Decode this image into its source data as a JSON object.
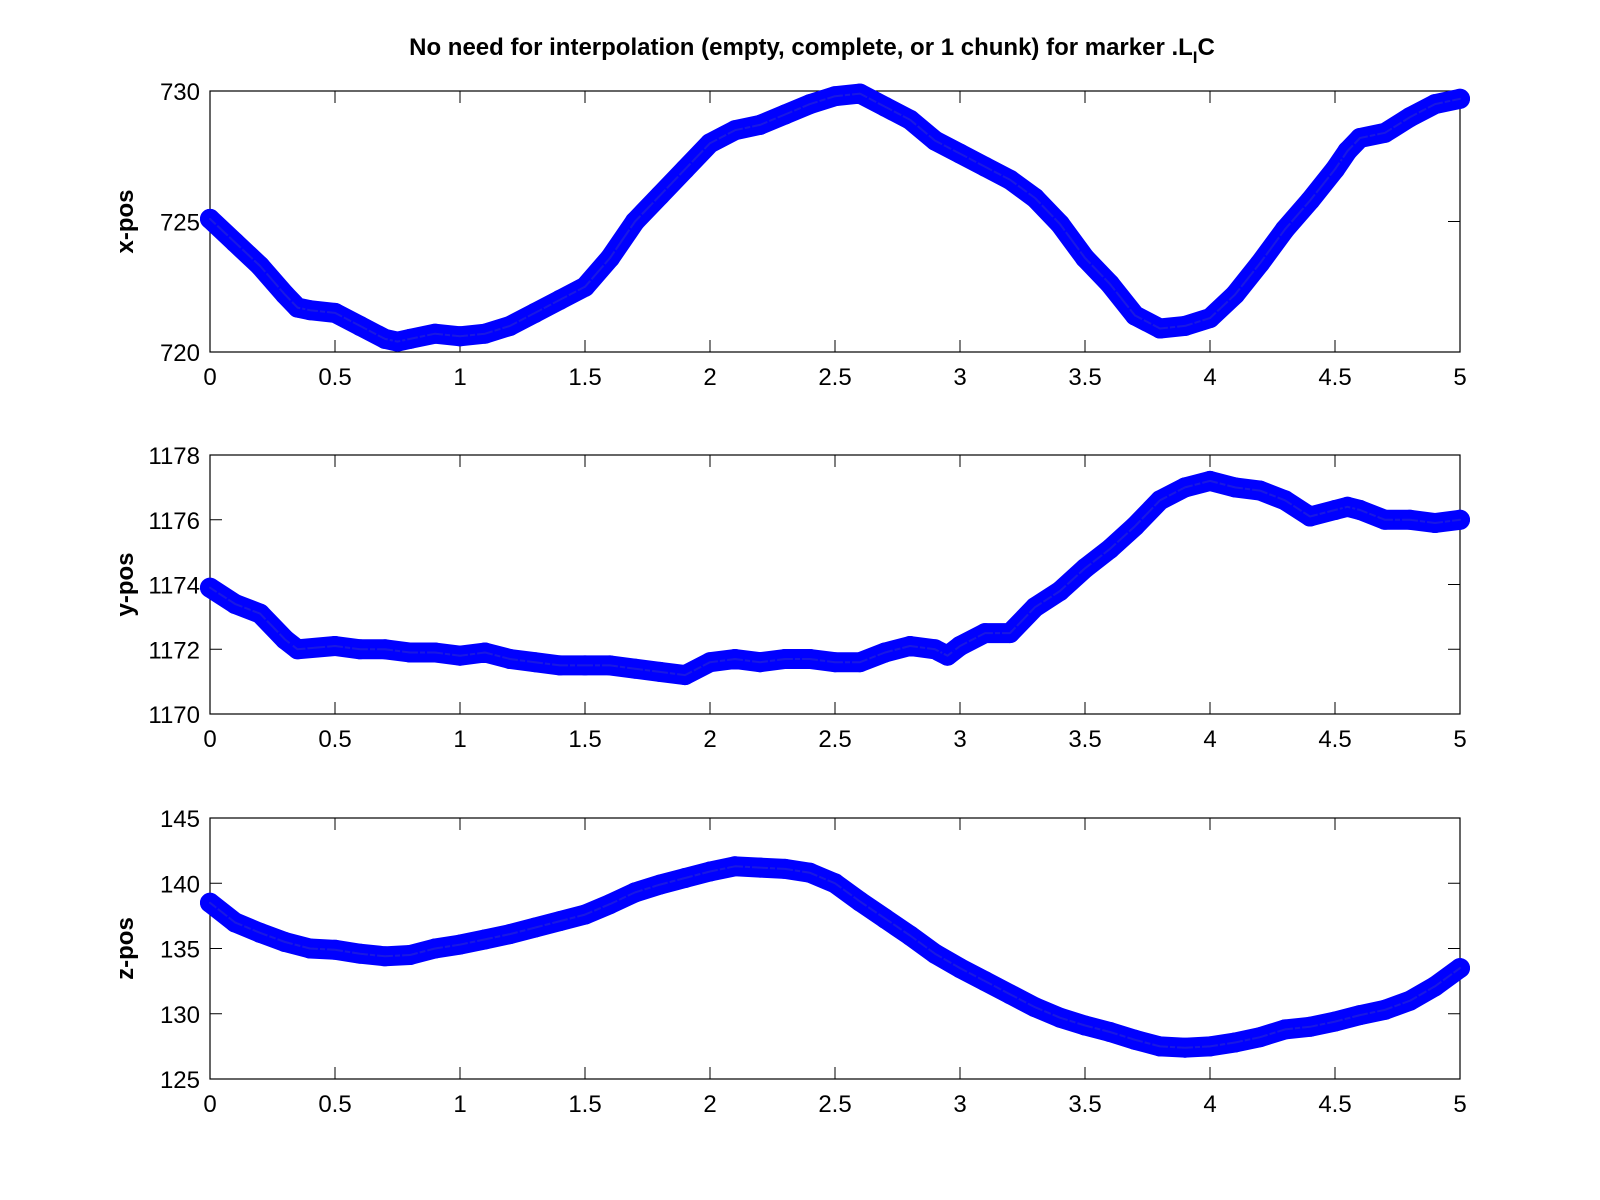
{
  "figure": {
    "background": "#ffffff",
    "series_color": "#0000ff"
  },
  "chart_data": [
    {
      "type": "line",
      "marker": "circle",
      "title": "No need for interpolation (empty, complete, or 1 chunk) for marker .L",
      "title_subscript": "I",
      "title_suffix": "C",
      "xlabel": "",
      "ylabel": "x-pos",
      "xlim": [
        0,
        5
      ],
      "ylim": [
        720,
        730
      ],
      "xticks": [
        "0",
        "0.5",
        "1",
        "1.5",
        "2",
        "2.5",
        "3",
        "3.5",
        "4",
        "4.5",
        "5"
      ],
      "yticks": [
        "720",
        "725",
        "730"
      ],
      "grid": false,
      "x": [
        0,
        0.1,
        0.2,
        0.3,
        0.35,
        0.4,
        0.5,
        0.6,
        0.7,
        0.75,
        0.8,
        0.9,
        1.0,
        1.1,
        1.2,
        1.3,
        1.4,
        1.5,
        1.6,
        1.7,
        1.8,
        1.9,
        2.0,
        2.1,
        2.2,
        2.3,
        2.4,
        2.5,
        2.6,
        2.7,
        2.8,
        2.9,
        3.0,
        3.1,
        3.2,
        3.3,
        3.4,
        3.5,
        3.6,
        3.7,
        3.8,
        3.9,
        4.0,
        4.1,
        4.2,
        4.3,
        4.4,
        4.5,
        4.55,
        4.6,
        4.7,
        4.8,
        4.9,
        5.0
      ],
      "values": [
        725.1,
        724.2,
        723.3,
        722.2,
        721.7,
        721.6,
        721.5,
        721.0,
        720.5,
        720.4,
        720.5,
        720.7,
        720.6,
        720.7,
        721.0,
        721.5,
        722.0,
        722.5,
        723.6,
        725.0,
        726.0,
        727.0,
        728.0,
        728.5,
        728.7,
        729.1,
        729.5,
        729.8,
        729.9,
        729.4,
        728.9,
        728.1,
        727.6,
        727.1,
        726.6,
        725.9,
        724.9,
        723.6,
        722.6,
        721.4,
        720.9,
        721.0,
        721.3,
        722.2,
        723.4,
        724.7,
        725.8,
        727.0,
        727.7,
        728.2,
        728.4,
        729.0,
        729.5,
        729.7
      ]
    },
    {
      "type": "line",
      "marker": "circle",
      "title": "",
      "xlabel": "",
      "ylabel": "y-pos",
      "xlim": [
        0,
        5
      ],
      "ylim": [
        1170,
        1178
      ],
      "xticks": [
        "0",
        "0.5",
        "1",
        "1.5",
        "2",
        "2.5",
        "3",
        "3.5",
        "4",
        "4.5",
        "5"
      ],
      "yticks": [
        "1170",
        "1172",
        "1174",
        "1176",
        "1178"
      ],
      "grid": false,
      "x": [
        0,
        0.1,
        0.2,
        0.3,
        0.35,
        0.5,
        0.6,
        0.7,
        0.8,
        0.9,
        1.0,
        1.1,
        1.2,
        1.3,
        1.4,
        1.5,
        1.6,
        1.7,
        1.8,
        1.9,
        2.0,
        2.1,
        2.2,
        2.3,
        2.4,
        2.5,
        2.6,
        2.7,
        2.8,
        2.9,
        2.95,
        3.0,
        3.1,
        3.2,
        3.3,
        3.4,
        3.5,
        3.6,
        3.7,
        3.8,
        3.9,
        4.0,
        4.1,
        4.2,
        4.3,
        4.4,
        4.5,
        4.55,
        4.6,
        4.7,
        4.8,
        4.9,
        5.0
      ],
      "values": [
        1173.9,
        1173.4,
        1173.1,
        1172.3,
        1172.0,
        1172.1,
        1172.0,
        1172.0,
        1171.9,
        1171.9,
        1171.8,
        1171.9,
        1171.7,
        1171.6,
        1171.5,
        1171.5,
        1171.5,
        1171.4,
        1171.3,
        1171.2,
        1171.6,
        1171.7,
        1171.6,
        1171.7,
        1171.7,
        1171.6,
        1171.6,
        1171.9,
        1172.1,
        1172.0,
        1171.8,
        1172.1,
        1172.5,
        1172.5,
        1173.3,
        1173.8,
        1174.5,
        1175.1,
        1175.8,
        1176.6,
        1177.0,
        1177.2,
        1177.0,
        1176.9,
        1176.6,
        1176.1,
        1176.3,
        1176.4,
        1176.3,
        1176.0,
        1176.0,
        1175.9,
        1176.0
      ]
    },
    {
      "type": "line",
      "marker": "circle",
      "title": "",
      "xlabel": "",
      "ylabel": "z-pos",
      "xlim": [
        0,
        5
      ],
      "ylim": [
        125,
        145
      ],
      "xticks": [
        "0",
        "0.5",
        "1",
        "1.5",
        "2",
        "2.5",
        "3",
        "3.5",
        "4",
        "4.5",
        "5"
      ],
      "yticks": [
        "125",
        "130",
        "135",
        "140",
        "145"
      ],
      "grid": false,
      "x": [
        0,
        0.1,
        0.2,
        0.3,
        0.4,
        0.5,
        0.6,
        0.7,
        0.8,
        0.9,
        1.0,
        1.1,
        1.2,
        1.3,
        1.4,
        1.5,
        1.6,
        1.7,
        1.8,
        1.9,
        2.0,
        2.1,
        2.2,
        2.3,
        2.4,
        2.5,
        2.6,
        2.7,
        2.8,
        2.9,
        3.0,
        3.1,
        3.2,
        3.3,
        3.4,
        3.5,
        3.6,
        3.7,
        3.8,
        3.9,
        4.0,
        4.1,
        4.2,
        4.3,
        4.4,
        4.5,
        4.6,
        4.7,
        4.8,
        4.9,
        5.0
      ],
      "values": [
        138.5,
        137.0,
        136.2,
        135.5,
        135.0,
        134.9,
        134.6,
        134.4,
        134.5,
        135.0,
        135.3,
        135.7,
        136.1,
        136.6,
        137.1,
        137.6,
        138.4,
        139.3,
        139.9,
        140.4,
        140.9,
        141.3,
        141.2,
        141.1,
        140.8,
        140.0,
        138.6,
        137.3,
        136.0,
        134.6,
        133.5,
        132.5,
        131.5,
        130.5,
        129.7,
        129.1,
        128.6,
        128.0,
        127.5,
        127.4,
        127.5,
        127.8,
        128.2,
        128.8,
        129.0,
        129.4,
        129.9,
        130.3,
        131.0,
        132.1,
        133.5
      ]
    }
  ]
}
